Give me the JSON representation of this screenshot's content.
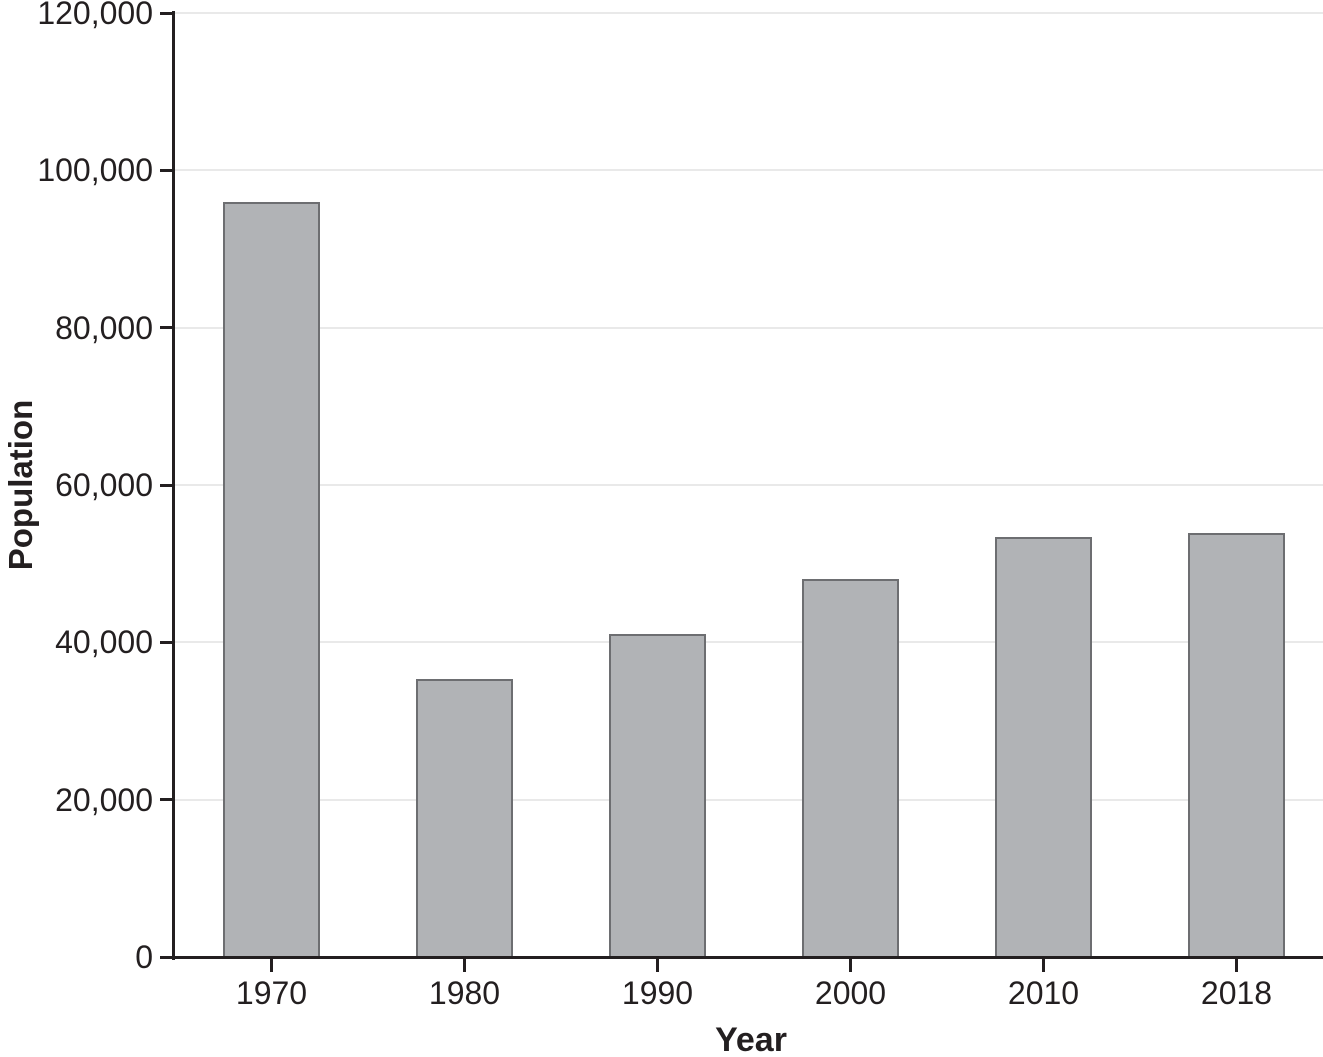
{
  "chart_data": {
    "type": "bar",
    "title": "",
    "xlabel": "Year",
    "ylabel": "Population",
    "categories": [
      "1970",
      "1980",
      "1990",
      "2000",
      "2010",
      "2018"
    ],
    "values": [
      96000,
      35300,
      41000,
      48000,
      53400,
      53900
    ],
    "ylim": [
      0,
      120000
    ],
    "ytick_interval": 20000,
    "ytick_labels": [
      "0",
      "20,000",
      "40,000",
      "60,000",
      "80,000",
      "100,000",
      "120,000"
    ],
    "grid": "horizontal-on",
    "legend": "none",
    "colors": {
      "bar_fill": "#b1b3b6",
      "bar_border": "#6d6e71",
      "axis": "#231f20",
      "text": "#231f20",
      "gridline": "#e9e9e9",
      "background": "#ffffff"
    }
  }
}
